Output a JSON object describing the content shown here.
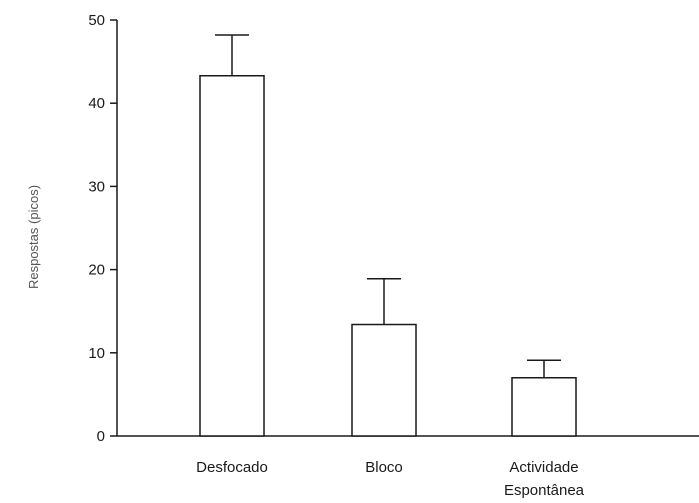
{
  "chart_data": {
    "type": "bar",
    "title": "",
    "xlabel": "",
    "ylabel": "Respostas (picos)",
    "ylim": [
      0,
      50
    ],
    "yticks": [
      "0",
      "10",
      "20",
      "30",
      "40",
      "50"
    ],
    "grid": false,
    "categories": [
      [
        "Desfocado"
      ],
      [
        "Bloco"
      ],
      [
        "Actividade",
        "Espontânea"
      ]
    ],
    "values": [
      43.3,
      13.4,
      7.0
    ],
    "error_upper": [
      48.2,
      18.9,
      9.1
    ],
    "bar_fill": "#ffffff",
    "bar_stroke": "#1a1a1a"
  }
}
